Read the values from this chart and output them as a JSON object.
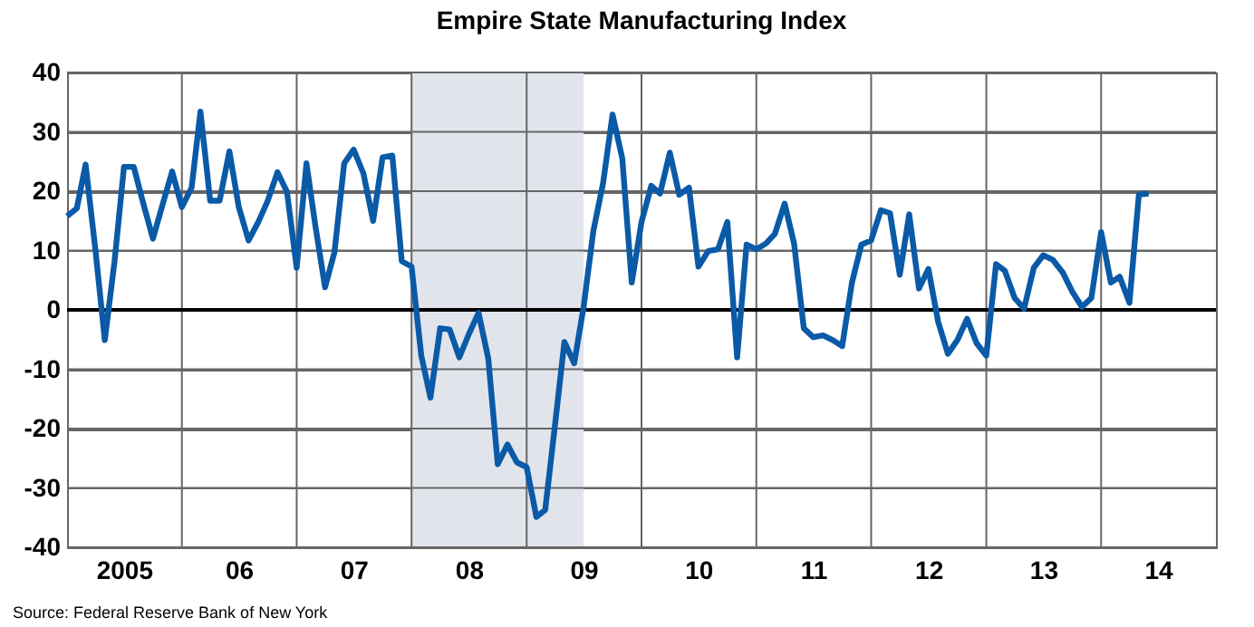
{
  "chart_data": {
    "type": "line",
    "title": "Empire State Manufacturing Index",
    "annotations": [
      "Source: Federal Reserve Bank of New York"
    ],
    "x": [
      "2005-01",
      "2005-02",
      "2005-03",
      "2005-04",
      "2005-05",
      "2005-06",
      "2005-07",
      "2005-08",
      "2005-09",
      "2005-10",
      "2005-11",
      "2005-12",
      "2006-01",
      "2006-02",
      "2006-03",
      "2006-04",
      "2006-05",
      "2006-06",
      "2006-07",
      "2006-08",
      "2006-09",
      "2006-10",
      "2006-11",
      "2006-12",
      "2007-01",
      "2007-02",
      "2007-03",
      "2007-04",
      "2007-05",
      "2007-06",
      "2007-07",
      "2007-08",
      "2007-09",
      "2007-10",
      "2007-11",
      "2007-12",
      "2008-01",
      "2008-02",
      "2008-03",
      "2008-04",
      "2008-05",
      "2008-06",
      "2008-07",
      "2008-08",
      "2008-09",
      "2008-10",
      "2008-11",
      "2008-12",
      "2009-01",
      "2009-02",
      "2009-03",
      "2009-04",
      "2009-05",
      "2009-06",
      "2009-07",
      "2009-08",
      "2009-09",
      "2009-10",
      "2009-11",
      "2009-12",
      "2010-01",
      "2010-02",
      "2010-03",
      "2010-04",
      "2010-05",
      "2010-06",
      "2010-07",
      "2010-08",
      "2010-09",
      "2010-10",
      "2010-11",
      "2010-12",
      "2011-01",
      "2011-02",
      "2011-03",
      "2011-04",
      "2011-05",
      "2011-06",
      "2011-07",
      "2011-08",
      "2011-09",
      "2011-10",
      "2011-11",
      "2011-12",
      "2012-01",
      "2012-02",
      "2012-03",
      "2012-04",
      "2012-05",
      "2012-06",
      "2012-07",
      "2012-08",
      "2012-09",
      "2012-10",
      "2012-11",
      "2012-12",
      "2013-01",
      "2013-02",
      "2013-03",
      "2013-04",
      "2013-05",
      "2013-06",
      "2013-07",
      "2013-08",
      "2013-09",
      "2013-10",
      "2013-11",
      "2013-12",
      "2014-01",
      "2014-02",
      "2014-03",
      "2014-04",
      "2014-05",
      "2014-06"
    ],
    "series": [
      {
        "color": "#0a5aa8",
        "values": [
          15.8,
          17.1,
          24.5,
          10.2,
          -5.1,
          8.2,
          24.1,
          24.1,
          17.8,
          12.0,
          17.8,
          23.3,
          17.3,
          20.6,
          33.4,
          18.4,
          18.4,
          26.7,
          17.3,
          11.7,
          14.8,
          18.4,
          23.2,
          19.9,
          7.1,
          24.7,
          14.3,
          3.8,
          9.7,
          24.7,
          27.0,
          23.0,
          15.0,
          25.7,
          26.0,
          8.2,
          7.3,
          -7.7,
          -14.8,
          -3.1,
          -3.3,
          -8.0,
          -4.1,
          -0.5,
          -8.2,
          -26.0,
          -22.7,
          -25.7,
          -26.5,
          -34.9,
          -33.7,
          -19.4,
          -5.4,
          -9.0,
          0.5,
          13.3,
          21.4,
          32.9,
          25.5,
          4.6,
          14.8,
          20.9,
          19.6,
          26.5,
          19.4,
          20.6,
          7.3,
          9.9,
          10.2,
          14.8,
          -8.0,
          11.0,
          10.2,
          11.2,
          12.8,
          17.9,
          11.2,
          -3.1,
          -4.6,
          -4.3,
          -5.1,
          -6.1,
          4.6,
          11.0,
          11.7,
          16.8,
          16.3,
          5.9,
          16.1,
          3.6,
          6.9,
          -2.0,
          -7.4,
          -5.1,
          -1.5,
          -5.6,
          -7.7,
          7.7,
          6.6,
          2.0,
          0.2,
          7.1,
          9.2,
          8.4,
          6.3,
          3.1,
          0.5,
          2.0,
          13.1,
          4.6,
          5.6,
          1.2,
          19.4,
          19.6
        ]
      }
    ],
    "xlim": [
      "2005-01",
      "2015-01"
    ],
    "xticks": [
      {
        "value": "2005-07",
        "label": "2005"
      },
      {
        "value": "2006-01",
        "label": null
      },
      {
        "value": "2006-07",
        "label": "06"
      },
      {
        "value": "2007-01",
        "label": null
      },
      {
        "value": "2007-07",
        "label": "07"
      },
      {
        "value": "2008-01",
        "label": null
      },
      {
        "value": "2008-07",
        "label": "08"
      },
      {
        "value": "2009-01",
        "label": null
      },
      {
        "value": "2009-07",
        "label": "09"
      },
      {
        "value": "2010-01",
        "label": null
      },
      {
        "value": "2010-07",
        "label": "10"
      },
      {
        "value": "2011-01",
        "label": null
      },
      {
        "value": "2011-07",
        "label": "11"
      },
      {
        "value": "2012-01",
        "label": null
      },
      {
        "value": "2012-07",
        "label": "12"
      },
      {
        "value": "2013-01",
        "label": null
      },
      {
        "value": "2013-07",
        "label": "13"
      },
      {
        "value": "2014-01",
        "label": null
      },
      {
        "value": "2014-07",
        "label": "14"
      }
    ],
    "ylim": [
      -40,
      40
    ],
    "yticks": [
      -40,
      -30,
      -20,
      -10,
      0,
      10,
      20,
      30,
      40
    ],
    "grid": true,
    "ref_lines": [
      {
        "axis": "y",
        "value": 0,
        "color": "#000000"
      }
    ],
    "bands": [
      {
        "axis": "x",
        "from": "2008-01",
        "to": "2009-07",
        "color": "#e2e4ec"
      }
    ]
  }
}
